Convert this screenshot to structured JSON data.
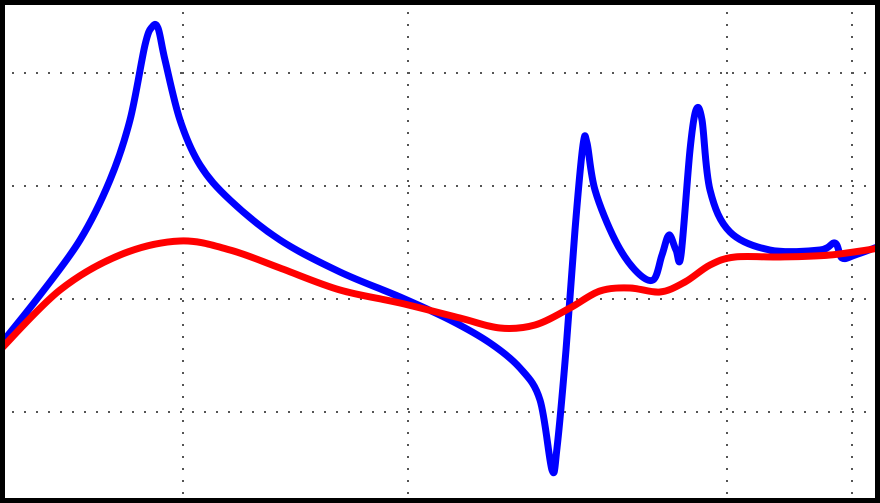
{
  "chart_data": {
    "type": "line",
    "title": "",
    "xlabel": "",
    "ylabel": "",
    "grid": true,
    "grid_style": "dotted",
    "xlim": [
      0,
      880
    ],
    "ylim": [
      -503,
      0
    ],
    "x_gridlines": [
      183,
      408,
      727,
      852
    ],
    "y_gridlines": [
      -73,
      -186,
      -299,
      -412
    ],
    "series": [
      {
        "color": "#0000ff",
        "points": [
          [
            0,
            -345
          ],
          [
            40,
            -295
          ],
          [
            80,
            -240
          ],
          [
            110,
            -180
          ],
          [
            130,
            -120
          ],
          [
            145,
            -45
          ],
          [
            152,
            -27
          ],
          [
            158,
            -28
          ],
          [
            165,
            -60
          ],
          [
            180,
            -120
          ],
          [
            200,
            -165
          ],
          [
            230,
            -200
          ],
          [
            280,
            -240
          ],
          [
            340,
            -272
          ],
          [
            400,
            -297
          ],
          [
            450,
            -320
          ],
          [
            490,
            -343
          ],
          [
            520,
            -368
          ],
          [
            540,
            -400
          ],
          [
            552,
            -470
          ],
          [
            557,
            -448
          ],
          [
            566,
            -350
          ],
          [
            575,
            -230
          ],
          [
            583,
            -145
          ],
          [
            587,
            -143
          ],
          [
            595,
            -190
          ],
          [
            615,
            -240
          ],
          [
            635,
            -270
          ],
          [
            653,
            -280
          ],
          [
            662,
            -255
          ],
          [
            669,
            -235
          ],
          [
            676,
            -250
          ],
          [
            681,
            -255
          ],
          [
            690,
            -150
          ],
          [
            696,
            -110
          ],
          [
            702,
            -120
          ],
          [
            710,
            -190
          ],
          [
            730,
            -232
          ],
          [
            770,
            -250
          ],
          [
            820,
            -250
          ],
          [
            835,
            -243
          ],
          [
            842,
            -258
          ],
          [
            855,
            -255
          ],
          [
            880,
            -246
          ]
        ]
      },
      {
        "color": "#ff0000",
        "points": [
          [
            0,
            -350
          ],
          [
            60,
            -290
          ],
          [
            120,
            -255
          ],
          [
            180,
            -241
          ],
          [
            230,
            -250
          ],
          [
            280,
            -268
          ],
          [
            340,
            -290
          ],
          [
            400,
            -303
          ],
          [
            460,
            -318
          ],
          [
            500,
            -328
          ],
          [
            535,
            -325
          ],
          [
            570,
            -308
          ],
          [
            600,
            -291
          ],
          [
            630,
            -288
          ],
          [
            660,
            -292
          ],
          [
            685,
            -282
          ],
          [
            710,
            -265
          ],
          [
            735,
            -257
          ],
          [
            780,
            -257
          ],
          [
            830,
            -255
          ],
          [
            880,
            -248
          ]
        ]
      }
    ]
  }
}
